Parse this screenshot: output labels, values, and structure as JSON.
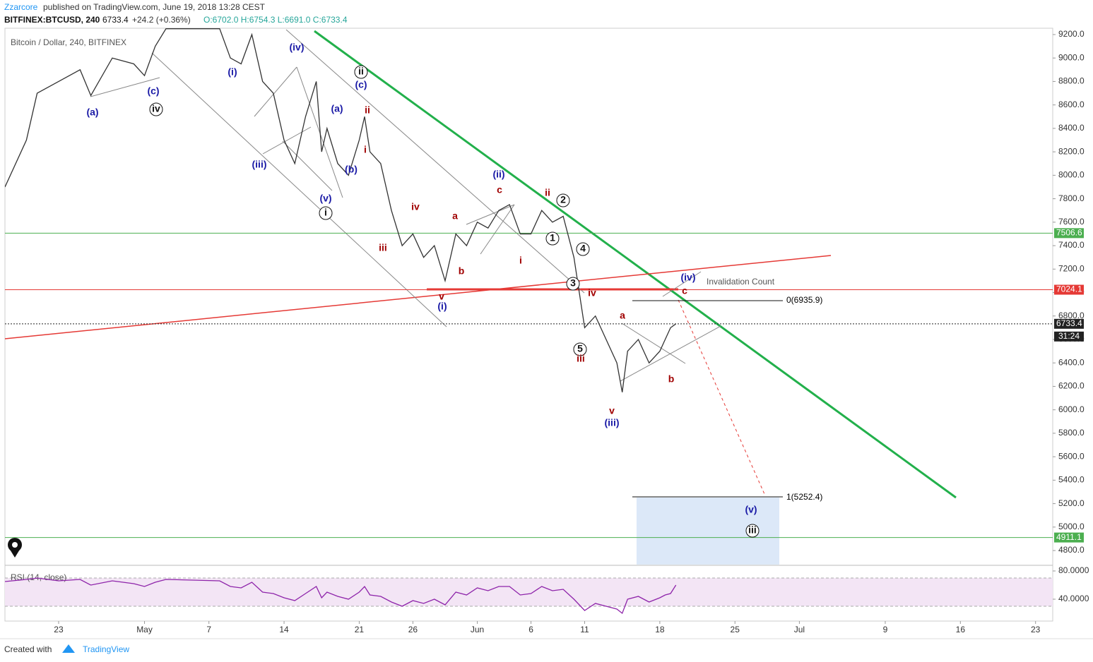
{
  "header": {
    "author": "Zzarcore",
    "published": "published on TradingView.com, June 19, 2018 13:28 CEST",
    "symbol": "BITFINEX:BTCUSD, 240",
    "last": "6733.4",
    "change": "+24.2 (+0.36%)",
    "ohlc": "O:6702.0 H:6754.3 L:6691.0 C:6733.4"
  },
  "footer": {
    "created": "Created with",
    "brand": "TradingView"
  },
  "chart_data": [
    {
      "type": "line",
      "title": "Bitcoin / Dollar, 240, BITFINEX",
      "x": [
        -5,
        -3,
        -2,
        0,
        2,
        3,
        5,
        7,
        8,
        9,
        10,
        15,
        16,
        17,
        18,
        19,
        20,
        21,
        22,
        23,
        24,
        24.5,
        25,
        26,
        27,
        28,
        28.5,
        29,
        30,
        31,
        32,
        33,
        34,
        35,
        36,
        37,
        38,
        39,
        40,
        41,
        42,
        43,
        44,
        45,
        46,
        47,
        48,
        48.5,
        49,
        50,
        51,
        52,
        52.5,
        53,
        54,
        55,
        56,
        56.5,
        57,
        57.5
      ],
      "series": [
        {
          "name": "BTCUSD",
          "color": "#333333",
          "values": [
            7900,
            8300,
            8700,
            8800,
            8900,
            8680,
            9000,
            8950,
            8850,
            9100,
            9250,
            9250,
            9000,
            8950,
            9200,
            8800,
            8700,
            8300,
            8100,
            8500,
            8800,
            8200,
            8400,
            8100,
            8000,
            8300,
            8500,
            8200,
            8100,
            7700,
            7400,
            7500,
            7300,
            7400,
            7100,
            7500,
            7400,
            7600,
            7550,
            7700,
            7750,
            7500,
            7500,
            7700,
            7600,
            7650,
            7300,
            7000,
            6700,
            6800,
            6600,
            6400,
            6150,
            6500,
            6600,
            6400,
            6500,
            6600,
            6700,
            6733.4
          ]
        }
      ],
      "xlim": [
        -5,
        92.6
      ],
      "xticks": [
        {
          "value": 0,
          "label": "23"
        },
        {
          "value": 8,
          "label": "May"
        },
        {
          "value": 14,
          "label": "7"
        },
        {
          "value": 21,
          "label": "14"
        },
        {
          "value": 28,
          "label": "21"
        },
        {
          "value": 33,
          "label": "26"
        },
        {
          "value": 39,
          "label": "Jun"
        },
        {
          "value": 44,
          "label": "6"
        },
        {
          "value": 49,
          "label": "11"
        },
        {
          "value": 56,
          "label": "18"
        },
        {
          "value": 63,
          "label": "25"
        },
        {
          "value": 69,
          "label": "Jul"
        },
        {
          "value": 77,
          "label": "9"
        },
        {
          "value": 84,
          "label": "16"
        },
        {
          "value": 91,
          "label": "23"
        }
      ],
      "ylim": [
        4680,
        9254
      ],
      "yticks": [
        {
          "value": 4800,
          "label": "4800.0"
        },
        {
          "value": 5000,
          "label": "5000.0"
        },
        {
          "value": 5200,
          "label": "5200.0"
        },
        {
          "value": 5400,
          "label": "5400.0"
        },
        {
          "value": 5600,
          "label": "5600.0"
        },
        {
          "value": 5800,
          "label": "5800.0"
        },
        {
          "value": 6000,
          "label": "6000.0"
        },
        {
          "value": 6200,
          "label": "6200.0"
        },
        {
          "value": 6400,
          "label": "6400.0"
        },
        {
          "value": 6600,
          "label": "6600.0"
        },
        {
          "value": 6800,
          "label": "6800.0"
        },
        {
          "value": 7000,
          "label": "7000.0"
        },
        {
          "value": 7200,
          "label": "7200.0"
        },
        {
          "value": 7400,
          "label": "7400.0"
        },
        {
          "value": 7600,
          "label": "7600.0"
        },
        {
          "value": 7800,
          "label": "7800.0"
        },
        {
          "value": 8000,
          "label": "8000.0"
        },
        {
          "value": 8200,
          "label": "8200.0"
        },
        {
          "value": 8400,
          "label": "8400.0"
        },
        {
          "value": 8600,
          "label": "8600.0"
        },
        {
          "value": 8800,
          "label": "8800.0"
        },
        {
          "value": 9000,
          "label": "9000.0"
        },
        {
          "value": 9200,
          "label": "9200.0"
        }
      ],
      "levels": [
        {
          "value": 7506.6,
          "color": "#4caf50"
        },
        {
          "value": 7024.1,
          "color": "#e53935"
        },
        {
          "value": 6733.4,
          "color": "#222222"
        },
        {
          "value": 4911.1,
          "color": "#4caf50"
        }
      ],
      "countdown": "31:24",
      "fib_labels": [
        "0(6935.9)",
        "1(5252.4)"
      ],
      "invalidation": "Invalidation Count",
      "wave_labels": [
        "(a)",
        "(c)",
        "iv",
        "(i)",
        "(iv)",
        "(iii)",
        "(v)",
        "i",
        "(a)",
        "(b)",
        "ii",
        "(c)",
        "ii",
        "i",
        "iii",
        "iv",
        "a",
        "b",
        "v",
        "(i)",
        "(ii)",
        "c",
        "ii",
        "2",
        "1",
        "4",
        "i",
        "3",
        "iv",
        "a",
        "5",
        "iii",
        "b",
        "v",
        "(iii)",
        "(iv)",
        "c",
        "(v)",
        "iii"
      ]
    },
    {
      "type": "line",
      "title": "RSI (14, close)",
      "x": [
        -5,
        -3,
        -2,
        0,
        2,
        3,
        5,
        7,
        8,
        9,
        10,
        15,
        16,
        17,
        18,
        19,
        20,
        21,
        22,
        23,
        24,
        24.5,
        25,
        26,
        27,
        28,
        28.5,
        29,
        30,
        31,
        32,
        33,
        34,
        35,
        36,
        37,
        38,
        39,
        40,
        41,
        42,
        43,
        44,
        45,
        46,
        47,
        48,
        48.5,
        49,
        50,
        51,
        52,
        52.5,
        53,
        54,
        55,
        56,
        56.5,
        57,
        57.5
      ],
      "series": [
        {
          "name": "RSI",
          "color": "#8e24aa",
          "values": [
            65,
            68,
            70,
            66,
            68,
            60,
            66,
            62,
            58,
            64,
            68,
            66,
            58,
            56,
            64,
            50,
            48,
            42,
            38,
            48,
            58,
            42,
            50,
            44,
            40,
            50,
            58,
            46,
            44,
            36,
            30,
            38,
            34,
            40,
            32,
            50,
            46,
            56,
            52,
            58,
            58,
            46,
            48,
            58,
            52,
            54,
            40,
            32,
            24,
            34,
            30,
            26,
            20,
            40,
            44,
            36,
            42,
            46,
            48,
            60
          ]
        }
      ],
      "xlim": [
        -5,
        92.6
      ],
      "ylim": [
        9,
        87
      ],
      "yticks": [
        {
          "value": 40,
          "label": "40.0000"
        },
        {
          "value": 80,
          "label": "80.0000"
        }
      ]
    }
  ]
}
